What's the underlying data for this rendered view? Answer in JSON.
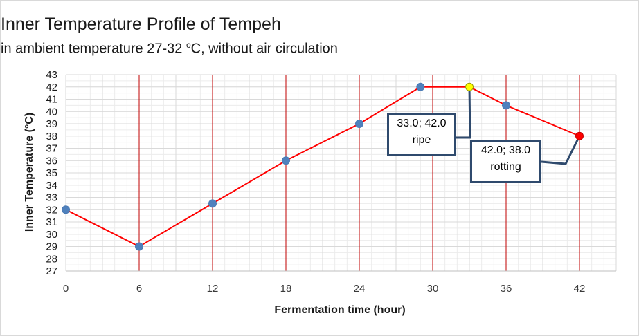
{
  "chart_data": {
    "type": "line",
    "title": "Inner Temperature  Profile of Tempeh",
    "subtitle_main": "in ambient temperature 27-32 ",
    "subtitle_sup": "o",
    "subtitle_rest": "C, without air circulation",
    "xlabel": "Fermentation time (hour)",
    "ylabel": "Inner Temperature (°C)",
    "xlim": [
      0,
      45
    ],
    "ylim": [
      27,
      43
    ],
    "xticks": [
      0,
      6,
      12,
      18,
      24,
      30,
      36,
      42
    ],
    "yticks": [
      27,
      28,
      29,
      30,
      31,
      32,
      33,
      34,
      35,
      36,
      37,
      38,
      39,
      40,
      41,
      42,
      43
    ],
    "grid": true,
    "series": [
      {
        "x": [
          0,
          6,
          12,
          18,
          24,
          29,
          33,
          36,
          42
        ],
        "y": [
          32,
          29,
          32.5,
          36,
          39,
          42,
          42,
          40.5,
          38
        ]
      }
    ],
    "highlights": [
      {
        "x": 33,
        "y": 42,
        "color": "#ffff00",
        "label_line1": "33.0; 42.0",
        "label_line2": "ripe"
      },
      {
        "x": 42,
        "y": 38,
        "color": "#ff0000",
        "label_line1": "42.0; 38.0",
        "label_line2": "rotting"
      }
    ],
    "colors": {
      "line": "#ff0000",
      "marker": "#4f81bd",
      "vline": "#c00000",
      "grid": "#d9d9d9",
      "callout_border": "#2f4a6d"
    }
  }
}
